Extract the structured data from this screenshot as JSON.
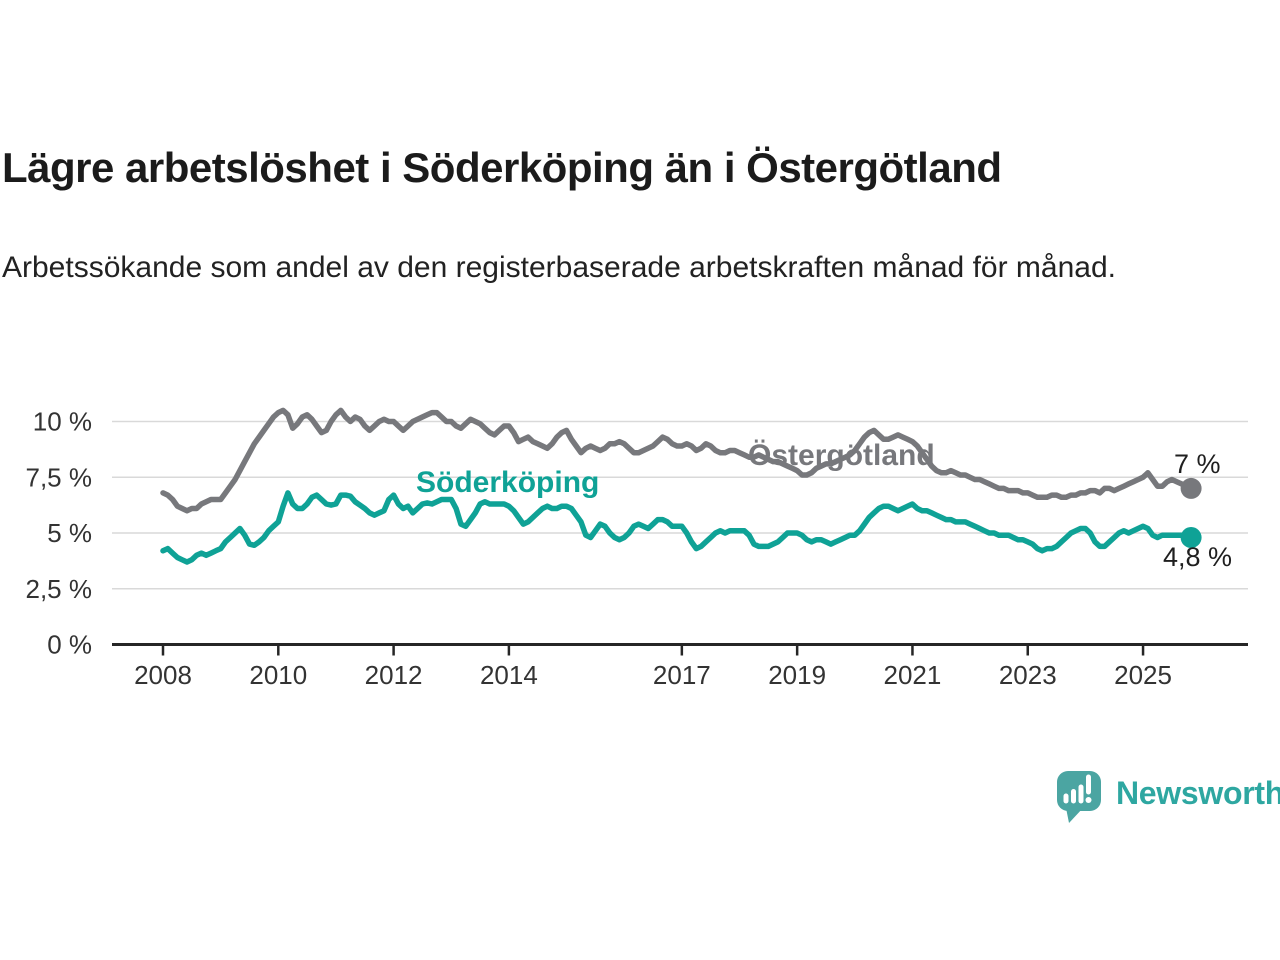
{
  "header": {
    "title": "Lägre arbetslöshet i Söderköping än i Östergötland",
    "subtitle": "Arbetssökande som andel av den registerbaserade arbetskraften månad för månad."
  },
  "chart_data": {
    "type": "line",
    "unit": "%",
    "frequency": "monthly",
    "x_start": "2008-01",
    "x_end": "2025-11",
    "ylim": [
      0,
      11
    ],
    "grid": "horizontal",
    "yticks": [
      {
        "value": 0,
        "label": "0 %"
      },
      {
        "value": 2.5,
        "label": "2,5 %"
      },
      {
        "value": 5,
        "label": "5 %"
      },
      {
        "value": 7.5,
        "label": "7,5 %"
      },
      {
        "value": 10,
        "label": "10 %"
      }
    ],
    "xticks": [
      {
        "year": 2008,
        "label": "2008"
      },
      {
        "year": 2010,
        "label": "2010"
      },
      {
        "year": 2012,
        "label": "2012"
      },
      {
        "year": 2014,
        "label": "2014"
      },
      {
        "year": 2017,
        "label": "2017"
      },
      {
        "year": 2019,
        "label": "2019"
      },
      {
        "year": 2021,
        "label": "2021"
      },
      {
        "year": 2023,
        "label": "2023"
      },
      {
        "year": 2025,
        "label": "2025"
      }
    ],
    "series": [
      {
        "name": "Östergötland",
        "color": "#77787c",
        "end_label": "7 %",
        "last_value": 7.0,
        "values": [
          6.8,
          6.7,
          6.5,
          6.2,
          6.1,
          6.0,
          6.1,
          6.1,
          6.3,
          6.4,
          6.5,
          6.5,
          6.5,
          6.8,
          7.1,
          7.4,
          7.8,
          8.2,
          8.6,
          9.0,
          9.3,
          9.6,
          9.9,
          10.2,
          10.4,
          10.5,
          10.3,
          9.7,
          9.9,
          10.2,
          10.3,
          10.1,
          9.8,
          9.5,
          9.6,
          10.0,
          10.3,
          10.5,
          10.2,
          10.0,
          10.2,
          10.1,
          9.8,
          9.6,
          9.8,
          10.0,
          10.1,
          10.0,
          10.0,
          9.8,
          9.6,
          9.8,
          10.0,
          10.1,
          10.2,
          10.3,
          10.4,
          10.4,
          10.2,
          10.0,
          10.0,
          9.8,
          9.7,
          9.9,
          10.1,
          10.0,
          9.9,
          9.7,
          9.5,
          9.4,
          9.6,
          9.8,
          9.8,
          9.5,
          9.1,
          9.2,
          9.3,
          9.1,
          9.0,
          8.9,
          8.8,
          9.0,
          9.3,
          9.5,
          9.6,
          9.2,
          8.9,
          8.6,
          8.8,
          8.9,
          8.8,
          8.7,
          8.8,
          9.0,
          9.0,
          9.1,
          9.0,
          8.8,
          8.6,
          8.6,
          8.7,
          8.8,
          8.9,
          9.1,
          9.3,
          9.2,
          9.0,
          8.9,
          8.9,
          9.0,
          8.9,
          8.7,
          8.8,
          9.0,
          8.9,
          8.7,
          8.6,
          8.6,
          8.7,
          8.7,
          8.6,
          8.5,
          8.4,
          8.4,
          8.5,
          8.4,
          8.3,
          8.2,
          8.2,
          8.1,
          8.0,
          7.9,
          7.8,
          7.6,
          7.6,
          7.7,
          7.9,
          8.0,
          8.1,
          8.1,
          8.2,
          8.3,
          8.4,
          8.5,
          8.7,
          9.0,
          9.3,
          9.5,
          9.6,
          9.4,
          9.2,
          9.2,
          9.3,
          9.4,
          9.3,
          9.2,
          9.1,
          8.9,
          8.6,
          8.3,
          8.0,
          7.8,
          7.7,
          7.7,
          7.8,
          7.7,
          7.6,
          7.6,
          7.5,
          7.4,
          7.4,
          7.3,
          7.2,
          7.1,
          7.0,
          7.0,
          6.9,
          6.9,
          6.9,
          6.8,
          6.8,
          6.7,
          6.6,
          6.6,
          6.6,
          6.7,
          6.7,
          6.6,
          6.6,
          6.7,
          6.7,
          6.8,
          6.8,
          6.9,
          6.9,
          6.8,
          7.0,
          7.0,
          6.9,
          7.0,
          7.1,
          7.2,
          7.3,
          7.4,
          7.5,
          7.7,
          7.4,
          7.1,
          7.1,
          7.3,
          7.4,
          7.3,
          7.2,
          7.1,
          7.0
        ]
      },
      {
        "name": "Söderköping",
        "color": "#0fa296",
        "end_label": "4,8 %",
        "last_value": 4.8,
        "values": [
          4.2,
          4.3,
          4.1,
          3.9,
          3.8,
          3.7,
          3.8,
          4.0,
          4.1,
          4.0,
          4.1,
          4.2,
          4.3,
          4.6,
          4.8,
          5.0,
          5.2,
          4.9,
          4.5,
          4.45,
          4.6,
          4.8,
          5.1,
          5.3,
          5.5,
          6.2,
          6.8,
          6.3,
          6.1,
          6.1,
          6.3,
          6.6,
          6.7,
          6.5,
          6.3,
          6.25,
          6.3,
          6.7,
          6.7,
          6.65,
          6.4,
          6.25,
          6.1,
          5.9,
          5.8,
          5.9,
          6.0,
          6.5,
          6.7,
          6.3,
          6.1,
          6.2,
          5.9,
          6.1,
          6.3,
          6.35,
          6.3,
          6.4,
          6.5,
          6.5,
          6.5,
          6.1,
          5.4,
          5.3,
          5.6,
          5.9,
          6.3,
          6.4,
          6.3,
          6.3,
          6.3,
          6.3,
          6.2,
          6.0,
          5.7,
          5.4,
          5.5,
          5.7,
          5.9,
          6.1,
          6.2,
          6.1,
          6.1,
          6.2,
          6.2,
          6.1,
          5.8,
          5.5,
          4.9,
          4.8,
          5.1,
          5.4,
          5.3,
          5.0,
          4.8,
          4.7,
          4.8,
          5.0,
          5.3,
          5.4,
          5.3,
          5.2,
          5.4,
          5.6,
          5.6,
          5.5,
          5.3,
          5.3,
          5.3,
          5.0,
          4.6,
          4.3,
          4.4,
          4.6,
          4.8,
          5.0,
          5.1,
          5.0,
          5.1,
          5.1,
          5.1,
          5.1,
          4.9,
          4.5,
          4.4,
          4.4,
          4.4,
          4.5,
          4.6,
          4.8,
          5.0,
          5.0,
          5.0,
          4.9,
          4.7,
          4.6,
          4.7,
          4.7,
          4.6,
          4.5,
          4.6,
          4.7,
          4.8,
          4.9,
          4.9,
          5.1,
          5.4,
          5.7,
          5.9,
          6.1,
          6.2,
          6.2,
          6.1,
          6.0,
          6.1,
          6.2,
          6.3,
          6.1,
          6.0,
          6.0,
          5.9,
          5.8,
          5.7,
          5.6,
          5.6,
          5.5,
          5.5,
          5.5,
          5.4,
          5.3,
          5.2,
          5.1,
          5.0,
          5.0,
          4.9,
          4.9,
          4.9,
          4.8,
          4.7,
          4.7,
          4.6,
          4.5,
          4.3,
          4.2,
          4.3,
          4.3,
          4.4,
          4.6,
          4.8,
          5.0,
          5.1,
          5.2,
          5.2,
          5.0,
          4.6,
          4.4,
          4.4,
          4.6,
          4.8,
          5.0,
          5.1,
          5.0,
          5.1,
          5.2,
          5.3,
          5.2,
          4.9,
          4.8,
          4.9,
          4.9,
          4.9,
          4.9,
          4.9,
          4.9,
          4.8
        ]
      }
    ],
    "colors": {
      "axis": "#262626",
      "grid": "#d9d9d9",
      "tick_text": "#333333"
    }
  },
  "footer": {
    "brand": "Newsworthy",
    "brand_color": "#2ea7a1",
    "icon": "bar-chart-speech-bubble"
  }
}
